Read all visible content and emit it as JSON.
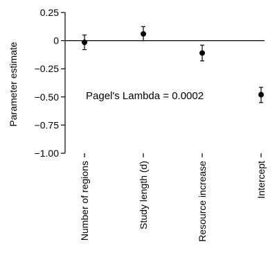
{
  "chart_data": {
    "type": "scatter",
    "title": "",
    "xlabel": "",
    "ylabel": "Parameter estimate",
    "ylim": [
      -1.0,
      0.25
    ],
    "yticks": [
      0.25,
      0,
      -0.25,
      -0.5,
      -0.75,
      -1.0
    ],
    "ytick_labels": [
      "0.25",
      "0",
      "−0.25",
      "−0.50",
      "−0.75",
      "−1.00"
    ],
    "categories": [
      "Number of regions",
      "Study length (d)",
      "Resource increase",
      "Intercept"
    ],
    "series": [
      {
        "values": [
          -0.015,
          0.06,
          -0.11,
          -0.48
        ],
        "error_low": [
          -0.08,
          0.0,
          -0.18,
          -0.55
        ],
        "error_high": [
          0.05,
          0.125,
          -0.04,
          -0.415
        ]
      }
    ],
    "reference_line_y": 0,
    "annotation": "Pagel's Lambda = 0.0002",
    "grid": false
  }
}
